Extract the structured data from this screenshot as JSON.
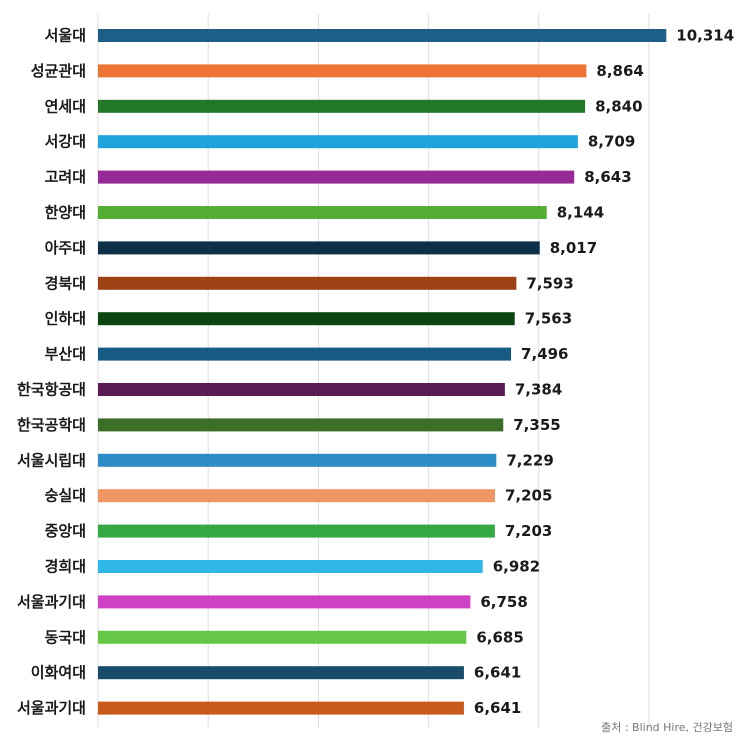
{
  "chart_data": {
    "type": "bar",
    "orientation": "horizontal",
    "categories": [
      "서울대",
      "성균관대",
      "연세대",
      "서강대",
      "고려대",
      "한양대",
      "아주대",
      "경북대",
      "인하대",
      "부산대",
      "한국항공대",
      "한국공학대",
      "서울시립대",
      "숭실대",
      "중앙대",
      "경희대",
      "서울과기대",
      "동국대",
      "이화여대",
      "서울과기대"
    ],
    "values": [
      10314,
      8864,
      8840,
      8709,
      8643,
      8144,
      8017,
      7593,
      7563,
      7496,
      7384,
      7355,
      7229,
      7205,
      7203,
      6982,
      6758,
      6685,
      6641,
      6641
    ],
    "value_labels": [
      "10,314",
      "8,864",
      "8,840",
      "8,709",
      "8,643",
      "8,144",
      "8,017",
      "7,593",
      "7,563",
      "7,496",
      "7,384",
      "7,355",
      "7,229",
      "7,205",
      "7,203",
      "6,982",
      "6,758",
      "6,685",
      "6,641",
      "6,641"
    ],
    "colors": [
      "#1d5f86",
      "#ec7434",
      "#237827",
      "#1ea3dc",
      "#962a96",
      "#54ad35",
      "#0d2f47",
      "#9c4214",
      "#0c4412",
      "#175b84",
      "#5a1a54",
      "#3b6e26",
      "#2b8cc6",
      "#ee9664",
      "#36a843",
      "#2fb7ea",
      "#cf40c4",
      "#66c746",
      "#174c6a",
      "#c95a1c"
    ],
    "xlim": [
      0,
      11000
    ],
    "grid": true,
    "title": "",
    "xlabel": "",
    "ylabel": ""
  },
  "source_note": "출처 : Blind Hire, 건강보험"
}
